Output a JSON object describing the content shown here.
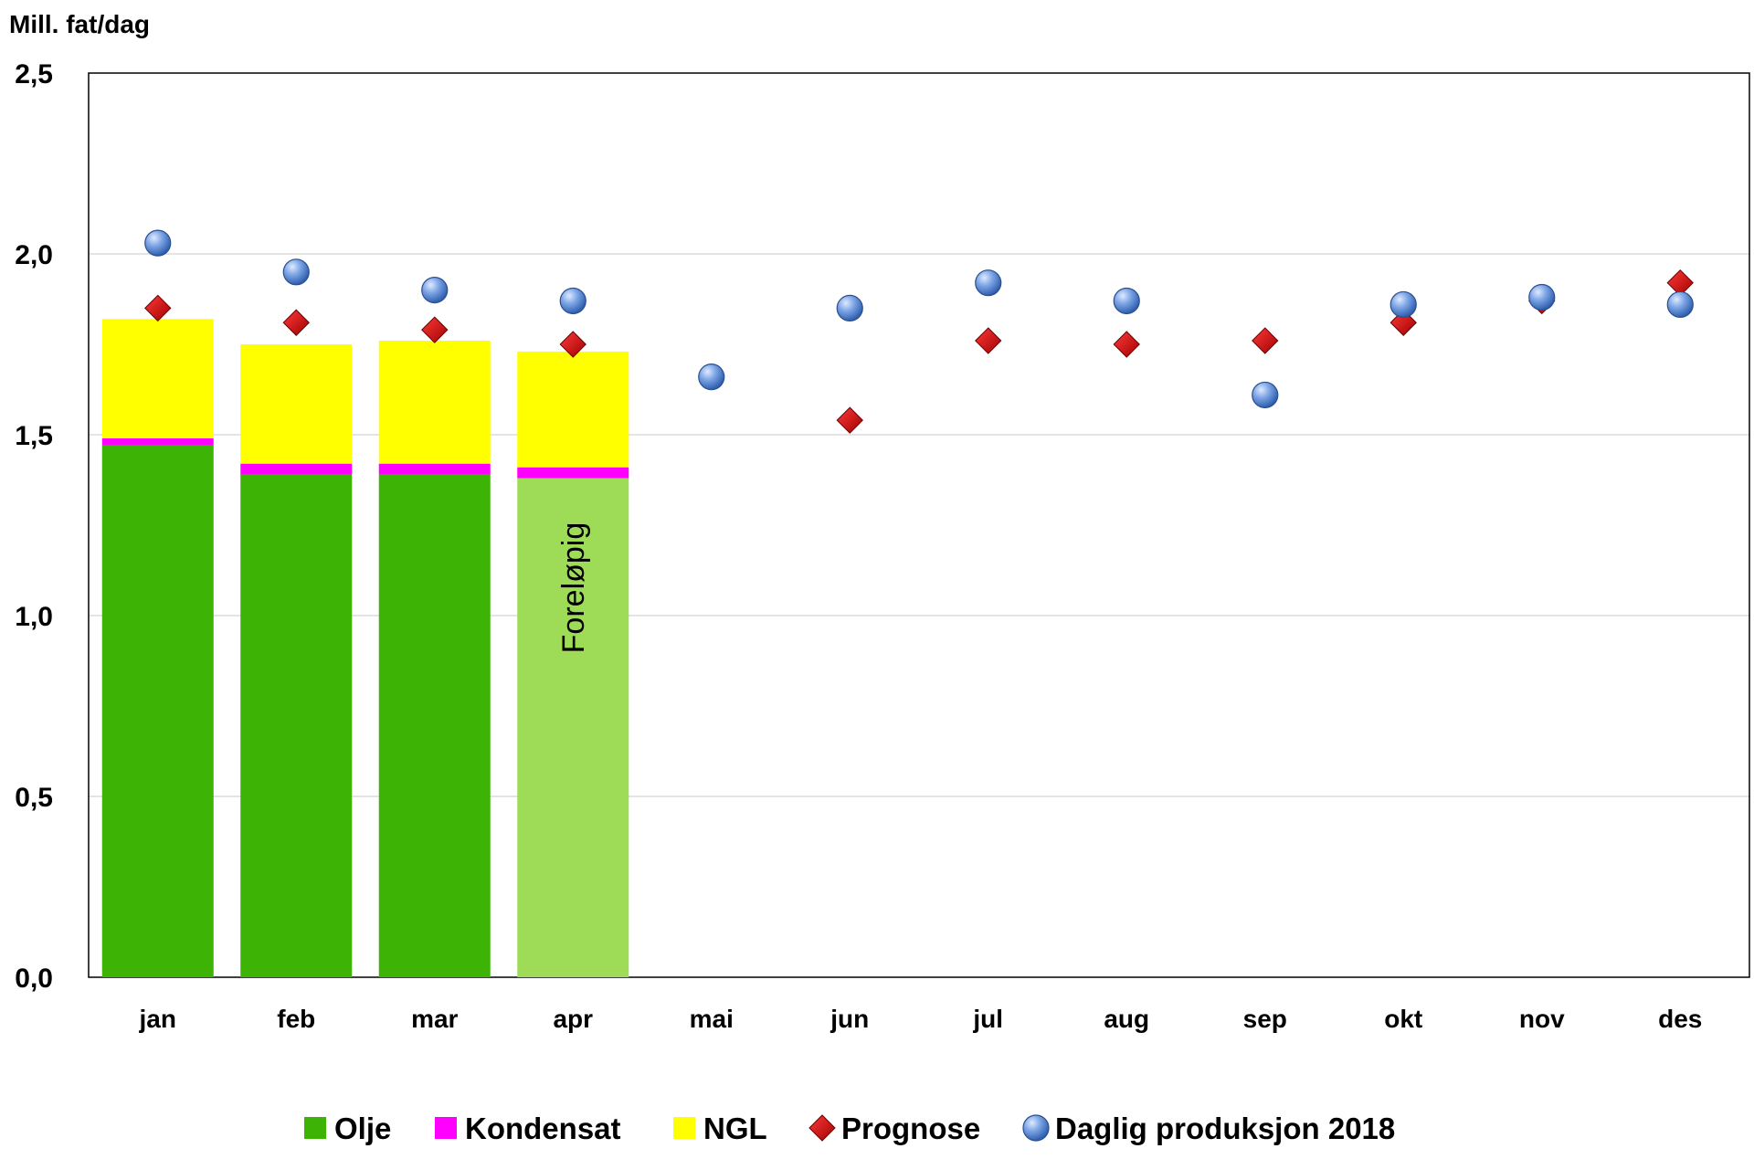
{
  "chart_data": {
    "type": "bar",
    "ylabel": "Mill. fat/dag",
    "ylim": [
      0,
      2.5
    ],
    "yticks": [
      "0,0",
      "0,5",
      "1,0",
      "1,5",
      "2,0",
      "2,5"
    ],
    "categories": [
      "jan",
      "feb",
      "mar",
      "apr",
      "mai",
      "jun",
      "jul",
      "aug",
      "sep",
      "okt",
      "nov",
      "des"
    ],
    "stacked_series": [
      {
        "name": "Olje",
        "color": "#3cb305",
        "values": [
          1.47,
          1.39,
          1.39,
          1.38,
          null,
          null,
          null,
          null,
          null,
          null,
          null,
          null
        ]
      },
      {
        "name": "Kondensat",
        "color": "#ff00ff",
        "values": [
          0.02,
          0.03,
          0.03,
          0.03,
          null,
          null,
          null,
          null,
          null,
          null,
          null,
          null
        ]
      },
      {
        "name": "NGL",
        "color": "#ffff00",
        "values": [
          0.33,
          0.33,
          0.34,
          0.32,
          null,
          null,
          null,
          null,
          null,
          null,
          null,
          null
        ]
      }
    ],
    "preliminary": {
      "category": "apr",
      "olje_color": "#9edc58",
      "label": "Foreløpig"
    },
    "marker_series": [
      {
        "name": "Prognose",
        "marker": "diamond",
        "color": "#cc0000",
        "values": [
          1.85,
          1.81,
          1.79,
          1.75,
          null,
          1.54,
          1.76,
          1.75,
          1.76,
          1.81,
          1.87,
          1.92
        ]
      },
      {
        "name": "Daglig produksjon 2018",
        "marker": "circle",
        "color": "#5b8fd8",
        "values": [
          2.03,
          1.95,
          1.9,
          1.87,
          1.66,
          1.85,
          1.92,
          1.87,
          1.61,
          1.86,
          1.88,
          1.86
        ]
      }
    ],
    "legend": [
      "Olje",
      "Kondensat",
      "NGL",
      "Prognose",
      "Daglig produksjon 2018"
    ],
    "legend_position": "bottom",
    "grid": true
  }
}
